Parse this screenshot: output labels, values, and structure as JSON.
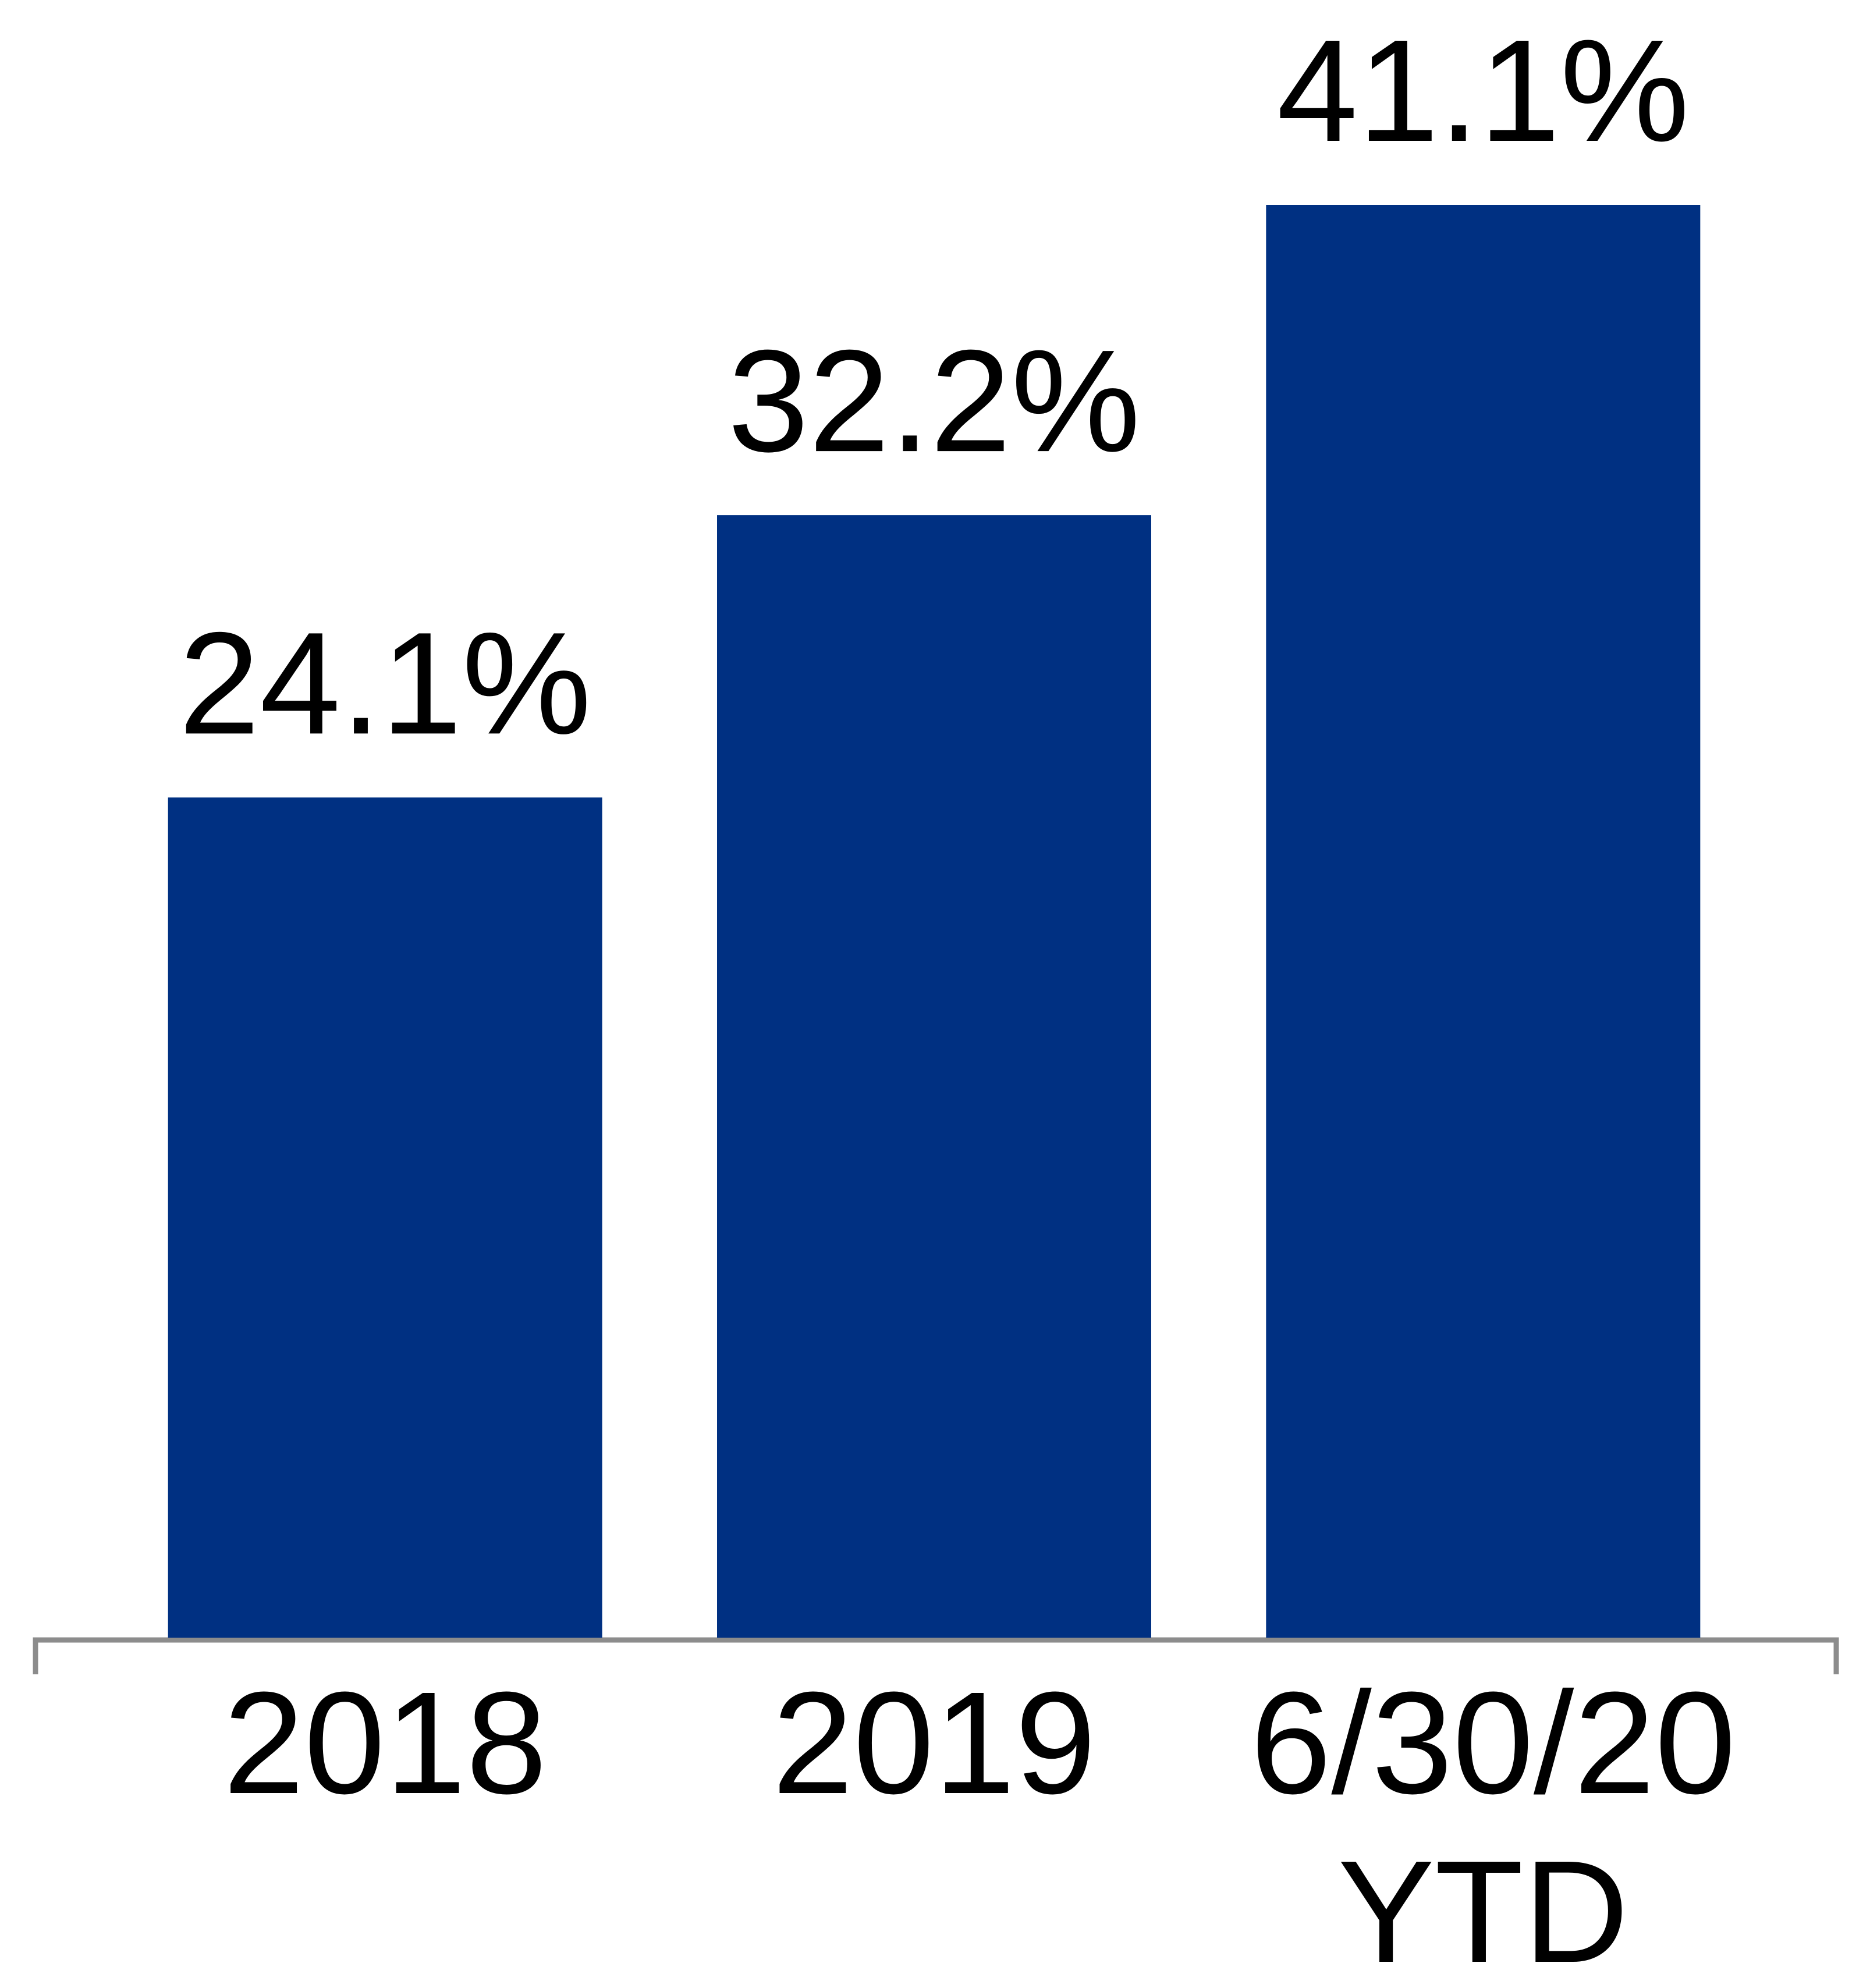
{
  "chart_data": {
    "type": "bar",
    "categories": [
      "2018",
      "2019",
      "6/30/20\nYTD"
    ],
    "values": [
      24.1,
      32.2,
      41.1
    ],
    "value_labels": [
      "24.1%",
      "32.2%",
      "41.1%"
    ],
    "color": "#003082"
  }
}
